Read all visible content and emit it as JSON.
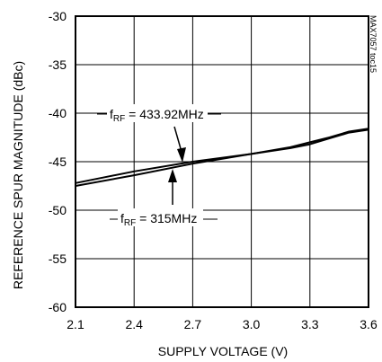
{
  "chart_data": {
    "type": "line",
    "xlabel": "SUPPLY VOLTAGE (V)",
    "ylabel": "REFERENCE SPUR MAGNITUDE (dBc)",
    "side_label": "MAX7057 toc15",
    "xlim": [
      2.1,
      3.6
    ],
    "ylim": [
      -60,
      -30
    ],
    "x_ticks": [
      2.1,
      2.4,
      2.7,
      3.0,
      3.3,
      3.6
    ],
    "x_tick_labels": [
      "2.1",
      "2.4",
      "2.7",
      "3.0",
      "3.3",
      "3.6"
    ],
    "y_ticks": [
      -30,
      -35,
      -40,
      -45,
      -50,
      -55,
      -60
    ],
    "y_tick_labels": [
      "-30",
      "-35",
      "-40",
      "-45",
      "-50",
      "-55",
      "-60"
    ],
    "grid": true,
    "series": [
      {
        "name": "433.92MHz",
        "x": [
          2.1,
          2.4,
          2.7,
          3.0,
          3.2,
          3.3,
          3.4,
          3.5,
          3.6
        ],
        "y": [
          -47.2,
          -46.0,
          -45.0,
          -44.2,
          -43.5,
          -43.0,
          -42.5,
          -41.9,
          -41.6
        ]
      },
      {
        "name": "315MHz",
        "x": [
          2.1,
          2.4,
          2.7,
          3.0,
          3.2,
          3.3,
          3.4,
          3.5,
          3.6
        ],
        "y": [
          -47.5,
          -46.4,
          -45.2,
          -44.2,
          -43.6,
          -43.2,
          -42.6,
          -42.0,
          -41.7
        ]
      }
    ],
    "annotations": [
      {
        "prefix": "f",
        "sub": "RF",
        "text": " = 433.92MHz"
      },
      {
        "prefix": "f",
        "sub": "RF",
        "text": " = 315MHz"
      }
    ]
  }
}
